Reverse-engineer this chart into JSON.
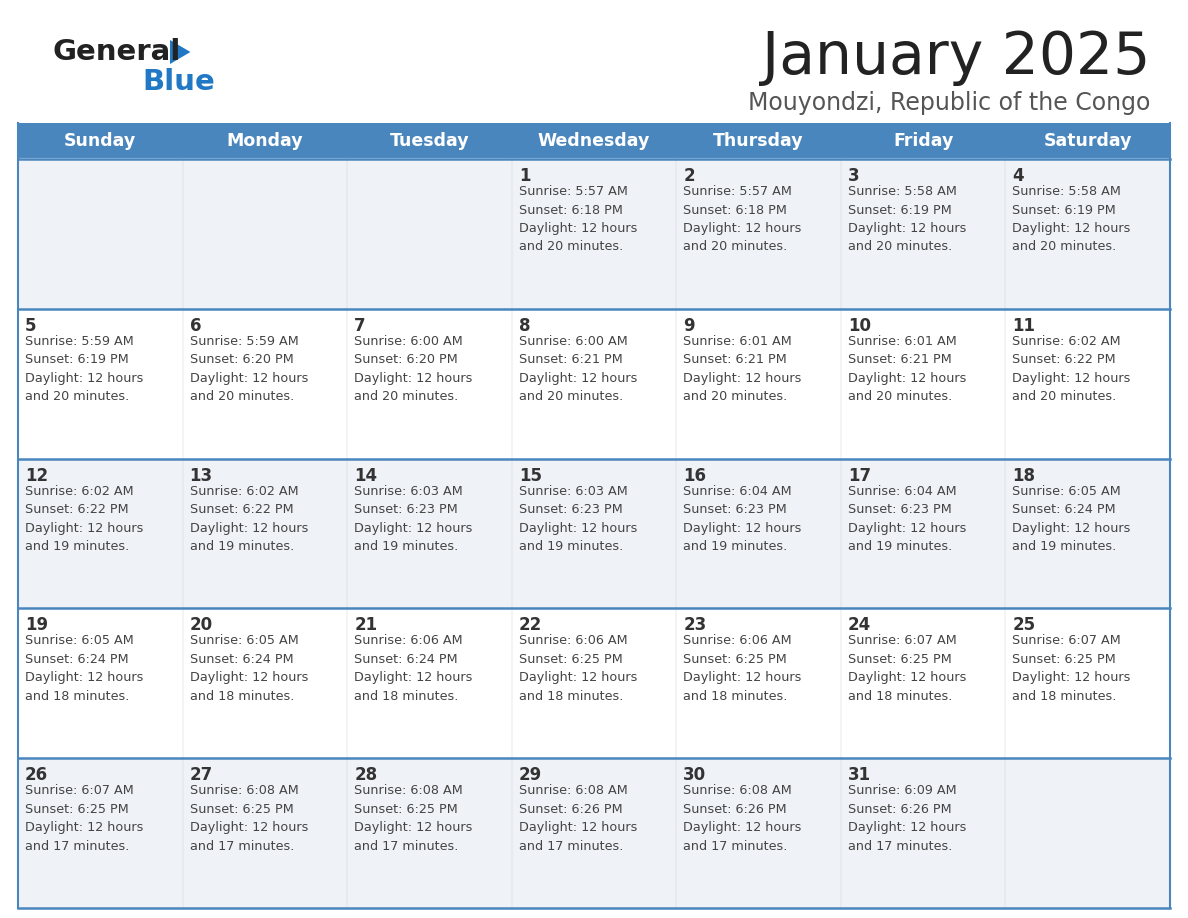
{
  "title": "January 2025",
  "subtitle": "Mouyondzi, Republic of the Congo",
  "header_bg": "#4a86be",
  "header_text_color": "#ffffff",
  "day_names": [
    "Sunday",
    "Monday",
    "Tuesday",
    "Wednesday",
    "Thursday",
    "Friday",
    "Saturday"
  ],
  "cell_bg_light": "#eff3f8",
  "cell_bg_white": "#ffffff",
  "cell_border_color": "#4a86be",
  "title_color": "#222222",
  "subtitle_color": "#555555",
  "day_num_color": "#333333",
  "info_color": "#444444",
  "logo_general_color": "#222222",
  "logo_blue_color": "#2178c4",
  "weeks": [
    [
      {
        "day": 0,
        "info": ""
      },
      {
        "day": 0,
        "info": ""
      },
      {
        "day": 0,
        "info": ""
      },
      {
        "day": 1,
        "info": "Sunrise: 5:57 AM\nSunset: 6:18 PM\nDaylight: 12 hours\nand 20 minutes."
      },
      {
        "day": 2,
        "info": "Sunrise: 5:57 AM\nSunset: 6:18 PM\nDaylight: 12 hours\nand 20 minutes."
      },
      {
        "day": 3,
        "info": "Sunrise: 5:58 AM\nSunset: 6:19 PM\nDaylight: 12 hours\nand 20 minutes."
      },
      {
        "day": 4,
        "info": "Sunrise: 5:58 AM\nSunset: 6:19 PM\nDaylight: 12 hours\nand 20 minutes."
      }
    ],
    [
      {
        "day": 5,
        "info": "Sunrise: 5:59 AM\nSunset: 6:19 PM\nDaylight: 12 hours\nand 20 minutes."
      },
      {
        "day": 6,
        "info": "Sunrise: 5:59 AM\nSunset: 6:20 PM\nDaylight: 12 hours\nand 20 minutes."
      },
      {
        "day": 7,
        "info": "Sunrise: 6:00 AM\nSunset: 6:20 PM\nDaylight: 12 hours\nand 20 minutes."
      },
      {
        "day": 8,
        "info": "Sunrise: 6:00 AM\nSunset: 6:21 PM\nDaylight: 12 hours\nand 20 minutes."
      },
      {
        "day": 9,
        "info": "Sunrise: 6:01 AM\nSunset: 6:21 PM\nDaylight: 12 hours\nand 20 minutes."
      },
      {
        "day": 10,
        "info": "Sunrise: 6:01 AM\nSunset: 6:21 PM\nDaylight: 12 hours\nand 20 minutes."
      },
      {
        "day": 11,
        "info": "Sunrise: 6:02 AM\nSunset: 6:22 PM\nDaylight: 12 hours\nand 20 minutes."
      }
    ],
    [
      {
        "day": 12,
        "info": "Sunrise: 6:02 AM\nSunset: 6:22 PM\nDaylight: 12 hours\nand 19 minutes."
      },
      {
        "day": 13,
        "info": "Sunrise: 6:02 AM\nSunset: 6:22 PM\nDaylight: 12 hours\nand 19 minutes."
      },
      {
        "day": 14,
        "info": "Sunrise: 6:03 AM\nSunset: 6:23 PM\nDaylight: 12 hours\nand 19 minutes."
      },
      {
        "day": 15,
        "info": "Sunrise: 6:03 AM\nSunset: 6:23 PM\nDaylight: 12 hours\nand 19 minutes."
      },
      {
        "day": 16,
        "info": "Sunrise: 6:04 AM\nSunset: 6:23 PM\nDaylight: 12 hours\nand 19 minutes."
      },
      {
        "day": 17,
        "info": "Sunrise: 6:04 AM\nSunset: 6:23 PM\nDaylight: 12 hours\nand 19 minutes."
      },
      {
        "day": 18,
        "info": "Sunrise: 6:05 AM\nSunset: 6:24 PM\nDaylight: 12 hours\nand 19 minutes."
      }
    ],
    [
      {
        "day": 19,
        "info": "Sunrise: 6:05 AM\nSunset: 6:24 PM\nDaylight: 12 hours\nand 18 minutes."
      },
      {
        "day": 20,
        "info": "Sunrise: 6:05 AM\nSunset: 6:24 PM\nDaylight: 12 hours\nand 18 minutes."
      },
      {
        "day": 21,
        "info": "Sunrise: 6:06 AM\nSunset: 6:24 PM\nDaylight: 12 hours\nand 18 minutes."
      },
      {
        "day": 22,
        "info": "Sunrise: 6:06 AM\nSunset: 6:25 PM\nDaylight: 12 hours\nand 18 minutes."
      },
      {
        "day": 23,
        "info": "Sunrise: 6:06 AM\nSunset: 6:25 PM\nDaylight: 12 hours\nand 18 minutes."
      },
      {
        "day": 24,
        "info": "Sunrise: 6:07 AM\nSunset: 6:25 PM\nDaylight: 12 hours\nand 18 minutes."
      },
      {
        "day": 25,
        "info": "Sunrise: 6:07 AM\nSunset: 6:25 PM\nDaylight: 12 hours\nand 18 minutes."
      }
    ],
    [
      {
        "day": 26,
        "info": "Sunrise: 6:07 AM\nSunset: 6:25 PM\nDaylight: 12 hours\nand 17 minutes."
      },
      {
        "day": 27,
        "info": "Sunrise: 6:08 AM\nSunset: 6:25 PM\nDaylight: 12 hours\nand 17 minutes."
      },
      {
        "day": 28,
        "info": "Sunrise: 6:08 AM\nSunset: 6:25 PM\nDaylight: 12 hours\nand 17 minutes."
      },
      {
        "day": 29,
        "info": "Sunrise: 6:08 AM\nSunset: 6:26 PM\nDaylight: 12 hours\nand 17 minutes."
      },
      {
        "day": 30,
        "info": "Sunrise: 6:08 AM\nSunset: 6:26 PM\nDaylight: 12 hours\nand 17 minutes."
      },
      {
        "day": 31,
        "info": "Sunrise: 6:09 AM\nSunset: 6:26 PM\nDaylight: 12 hours\nand 17 minutes."
      },
      {
        "day": 0,
        "info": ""
      }
    ]
  ],
  "row_colors": [
    "light",
    "white",
    "light",
    "white",
    "light"
  ]
}
